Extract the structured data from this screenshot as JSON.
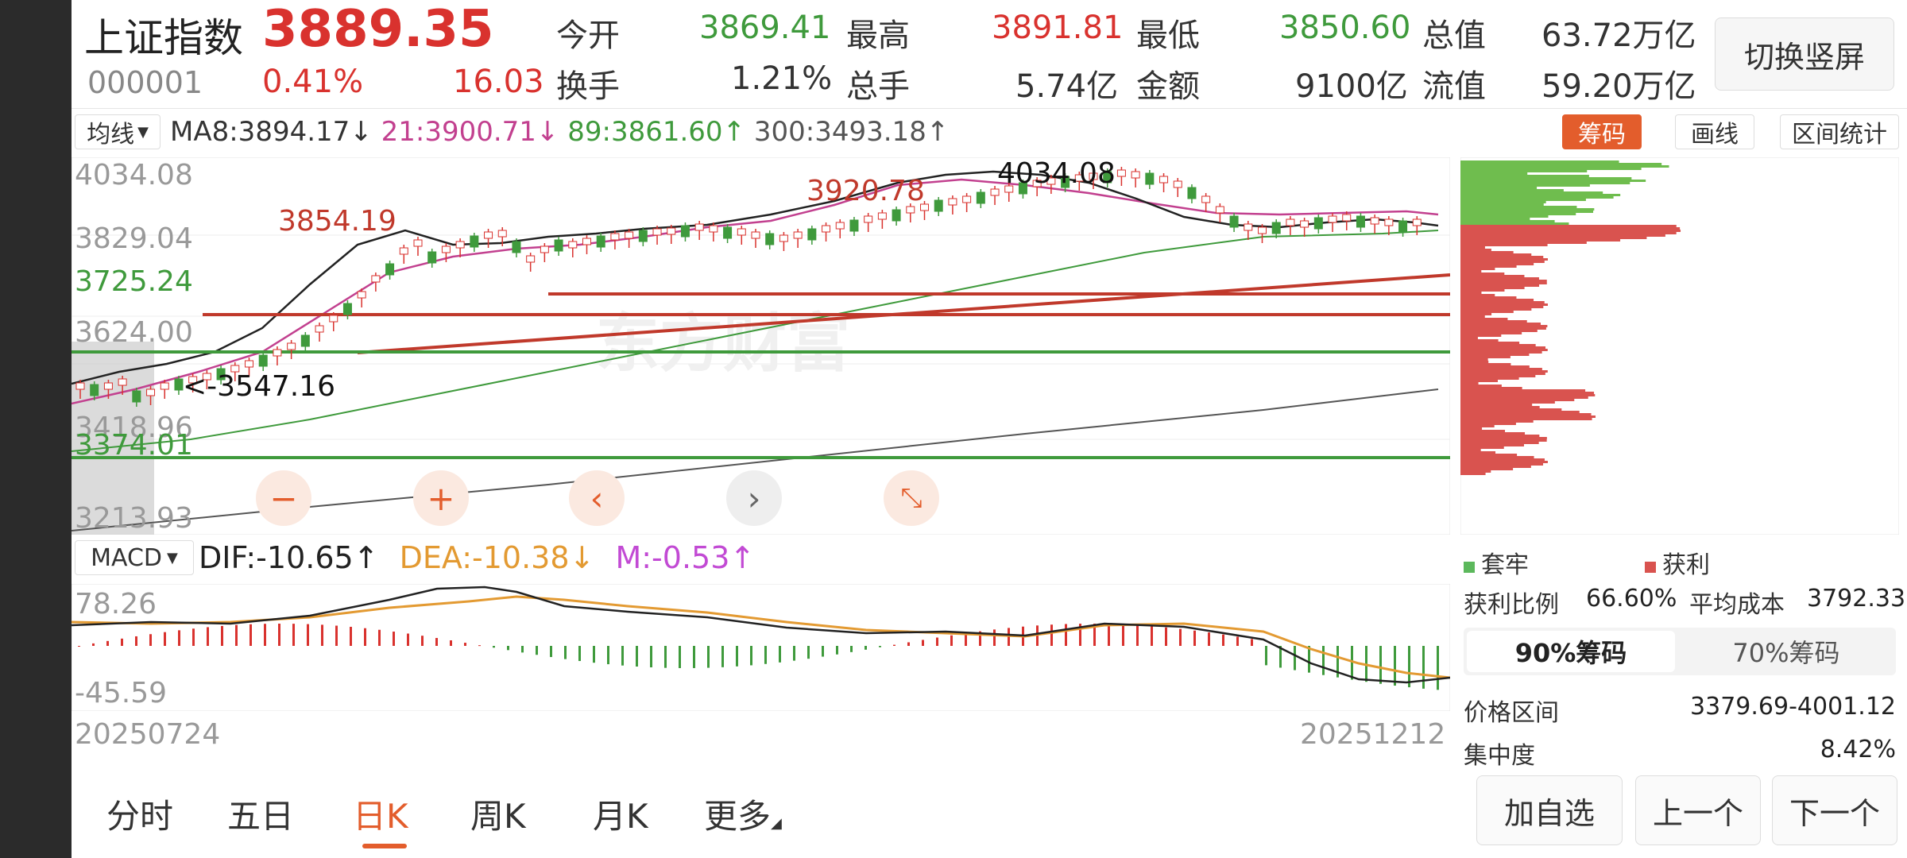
{
  "header": {
    "name": "上证指数",
    "price": "3889.35",
    "code": "000001",
    "change_pct": "0.41%",
    "change": "16.03",
    "stats": [
      {
        "label": "今开",
        "value": "3869.41",
        "color": "#3f9a3c"
      },
      {
        "label": "最高",
        "value": "3891.81",
        "color": "#d9322e"
      },
      {
        "label": "最低",
        "value": "3850.60",
        "color": "#3f9a3c"
      },
      {
        "label": "总值",
        "value": "63.72万亿",
        "color": "#333333"
      },
      {
        "label": "换手",
        "value": "1.21%",
        "color": "#333333"
      },
      {
        "label": "总手",
        "value": "5.74亿",
        "color": "#333333"
      },
      {
        "label": "金额",
        "value": "9100亿",
        "color": "#333333"
      },
      {
        "label": "流值",
        "value": "59.20万亿",
        "color": "#333333"
      }
    ],
    "switch_label": "切换竖屏"
  },
  "ma_bar": {
    "selector": "均线",
    "ma8": "MA8:3894.17",
    "ma21": "21:3900.71",
    "ma89": "89:3861.60",
    "ma300": "300:3493.18",
    "arrows": [
      "↓",
      "↓",
      "↑",
      "↑"
    ]
  },
  "tools": {
    "chip": "筹码",
    "draw": "画线",
    "range": "区间统计"
  },
  "price_chart": {
    "y_labels": [
      "4034.08",
      "3829.04",
      "3624.00",
      "3418.96",
      "3213.93"
    ],
    "hlines": [
      {
        "label": "3854.19",
        "color": "#c0392b"
      },
      {
        "label": "3920.78",
        "color": "#c0392b"
      },
      {
        "label": "3725.24",
        "color": "#3f9a3c"
      },
      {
        "label": "3374.01",
        "color": "#3f9a3c"
      }
    ],
    "annotations": {
      "high": "4034.08",
      "low": "<-3547.16"
    },
    "zoom_buttons": [
      "−",
      "+",
      "‹",
      "›",
      "⤡"
    ]
  },
  "macd": {
    "selector": "MACD",
    "dif": "DIF:-10.65",
    "dif_arrow": "↑",
    "dea": "DEA:-10.38",
    "dea_arrow": "↓",
    "m": "M:-0.53",
    "m_arrow": "↑",
    "y_top": "78.26",
    "y_bottom": "-45.59",
    "start_date": "20250724",
    "end_date": "20251212"
  },
  "chips": {
    "legend_trapped": "套牢",
    "legend_profit": "获利",
    "profit_ratio_label": "获利比例",
    "profit_ratio": "66.60%",
    "avg_cost_label": "平均成本",
    "avg_cost": "3792.33",
    "tabs": [
      "90%筹码",
      "70%筹码"
    ],
    "price_range_label": "价格区间",
    "price_range": "3379.69-4001.12",
    "concentration_label": "集中度",
    "concentration": "8.42%"
  },
  "period_tabs": [
    "分时",
    "五日",
    "日K",
    "周K",
    "月K",
    "更多"
  ],
  "active_tab": "日K",
  "bottom_buttons": {
    "add": "加自选",
    "prev": "上一个",
    "next": "下一个"
  },
  "colors": {
    "up": "#d9322e",
    "down": "#3f9a3c",
    "ma21": "#c2408f",
    "ma89": "#3f9a3c",
    "ma300": "#555555",
    "dea": "#e39a32",
    "m": "#c24ad4",
    "chip_accent": "#e35d2c"
  }
}
